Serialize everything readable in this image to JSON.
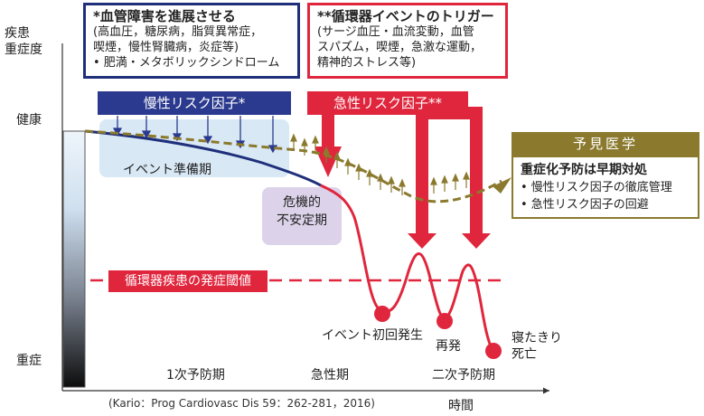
{
  "y_axis": {
    "top_label_line1": "疾患",
    "top_label_line2": "重症度",
    "health": "健康",
    "severe": "重症"
  },
  "x_axis": {
    "label": "時間",
    "phase_primary": "1次予防期",
    "phase_acute": "急性期",
    "phase_secondary": "二次予防期"
  },
  "box_chronic": {
    "title": "*血管障害を進展させる",
    "line1": "(高血圧，糖尿病，脂質異常症，",
    "line2": "喫煙，慢性腎臓病，炎症等)",
    "line3": "• 肥満・メタボリックシンドローム"
  },
  "box_acute": {
    "title": "**循環器イベントのトリガー",
    "line1": "(サージ血圧・血流変動，血管",
    "line2": "スパズム，喫煙，急激な運動，",
    "line3": "精神的ストレス等)"
  },
  "chronic_banner": "慢性リスク因子*",
  "acute_banner": "急性リスク因子**",
  "event_prep": "イベント準備期",
  "critical_line1": "危機的",
  "critical_line2": "不安定期",
  "threshold": "循環器疾患の発症閾値",
  "event_first": "イベント初回発生",
  "recurrence": "再発",
  "bedridden_line1": "寝たきり",
  "bedridden_line2": "死亡",
  "citation": "(Kario：Prog Cardiovasc Dis 59：262-281，2016)",
  "predictive": {
    "header": "予見医学",
    "title": "重症化予防は早期対処",
    "item1": "• 慢性リスク因子の徹底管理",
    "item2": "• 急性リスク因子の回避"
  },
  "colors": {
    "navy": "#1f2f7a",
    "red": "#e0263d",
    "olive": "#8b7a2e",
    "light_blue": "#d4e6f4",
    "lavender": "#dcd3ea"
  }
}
